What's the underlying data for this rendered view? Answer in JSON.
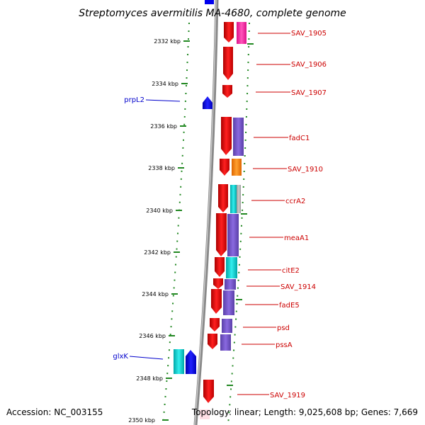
{
  "header": {
    "title": "Streptomyces avermitilis MA-4680, complete genome"
  },
  "footer": {
    "accession": "Accession: NC_003155",
    "topology": "Topology: linear; Length: 9,025,608 bp; Genes: 7,669"
  },
  "scale": {
    "ticks": [
      "2332 kbp",
      "2334 kbp",
      "2336 kbp",
      "2338 kbp",
      "2340 kbp",
      "2342 kbp",
      "2344 kbp",
      "2346 kbp",
      "2348 kbp",
      "2350 kbp"
    ]
  },
  "genes_right": [
    "SAV_1905",
    "SAV_1906",
    "SAV_1907",
    "fadC1",
    "SAV_1910",
    "ccrA2",
    "meaA1",
    "citE2",
    "SAV_1914",
    "fadE5",
    "psd",
    "pssA",
    "SAV_1919"
  ],
  "genes_left": [
    "prpL2",
    "glxK"
  ],
  "colors": {
    "gene_red": "#ee0000",
    "gene_blue": "#0000ee",
    "function_pink": "#ff33aa",
    "function_purple": "#7755cc",
    "function_orange": "#ff8800",
    "function_cyan": "#00cccc",
    "function_gray": "#aaaaaa",
    "axis": "#888888",
    "dots": "#228822"
  }
}
